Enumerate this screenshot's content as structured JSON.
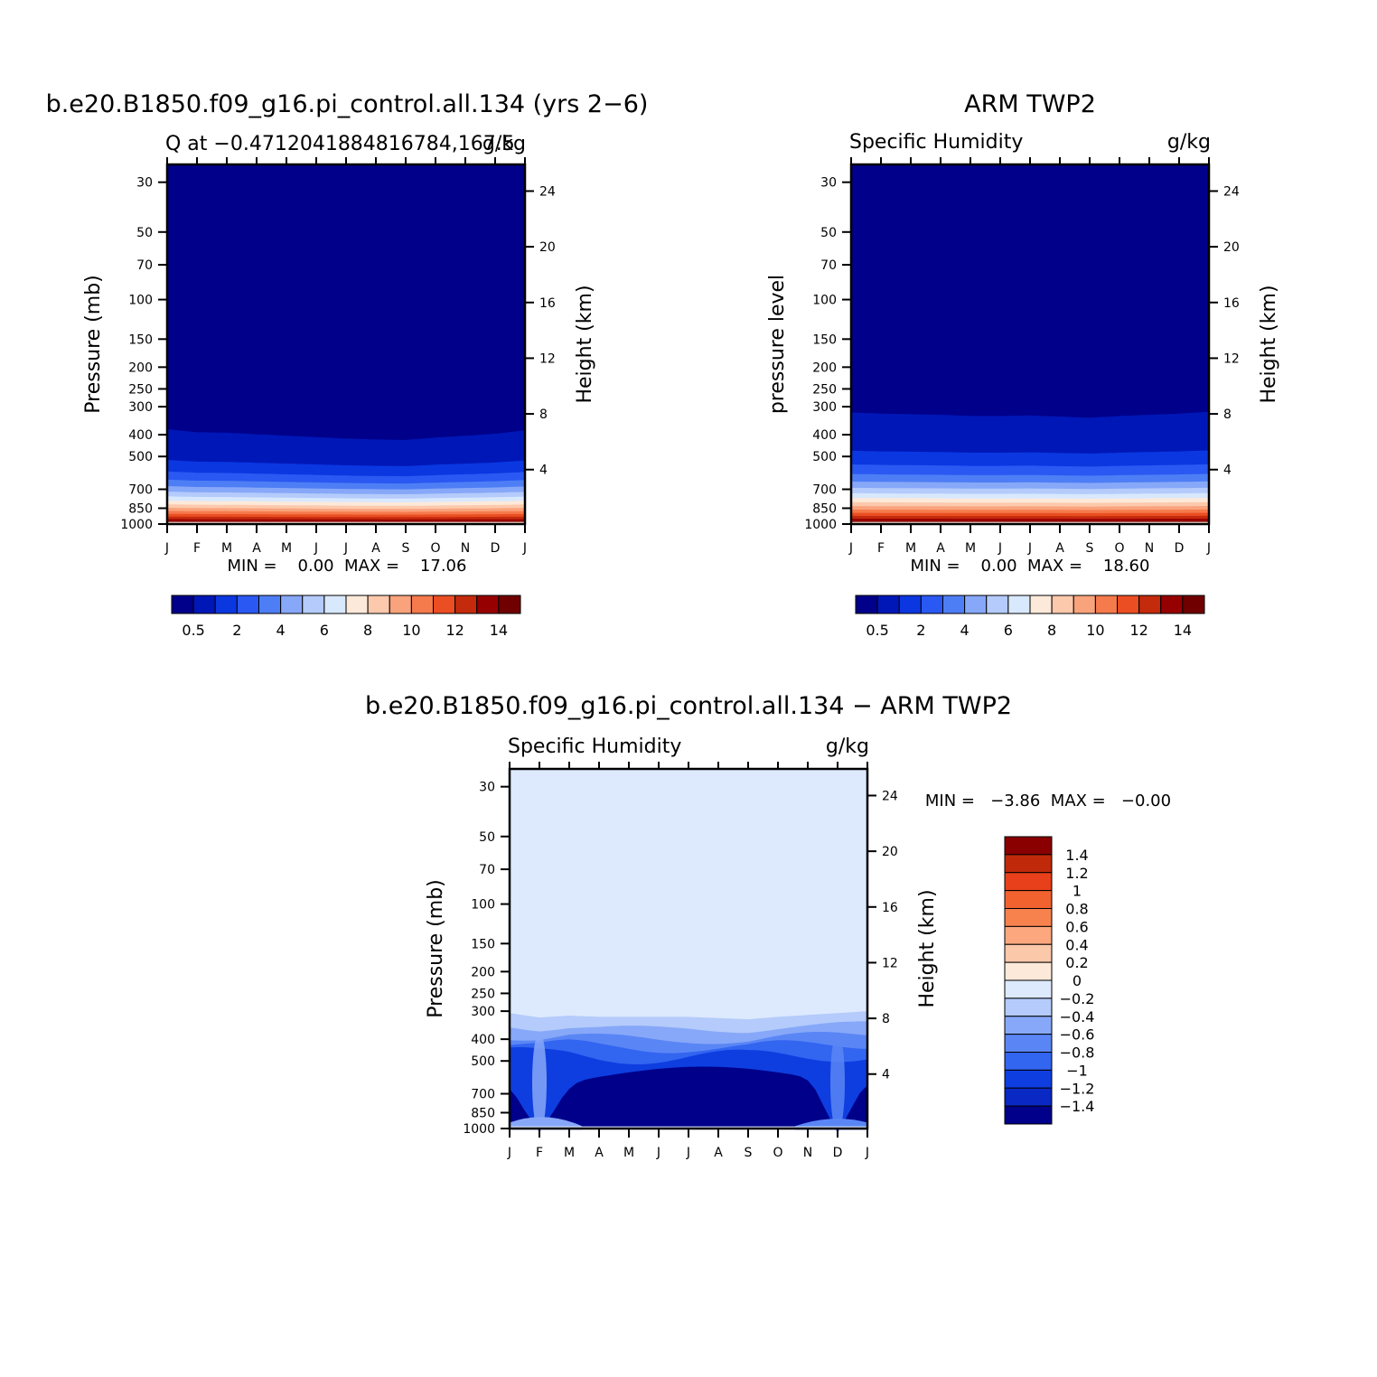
{
  "chart_data": [
    {
      "type": "heatmap",
      "title": "b.e20.B1850.f09_g16.pi_control.all.134 (yrs 2−6)",
      "subtitle_left": "Q at −0.47120418848167 84,167.5",
      "subtitle_left_full": "Q at −0.4712041884816784,167.5",
      "subtitle_right": "g/kg",
      "ylabel": "Pressure (mb)",
      "ylabel_right": "Height (km)",
      "x": [
        "J",
        "F",
        "M",
        "A",
        "M",
        "J",
        "J",
        "A",
        "S",
        "O",
        "N",
        "D",
        "J"
      ],
      "pressure_ticks": [
        30,
        50,
        70,
        100,
        150,
        200,
        250,
        300,
        400,
        500,
        700,
        850,
        1000
      ],
      "height_ticks": [
        4,
        8,
        12,
        16,
        20,
        24
      ],
      "ylim": [
        1000,
        25
      ],
      "stats": "MIN =    0.00  MAX =    17.06",
      "colorbar": {
        "labels": [
          "0.5",
          "2",
          "4",
          "6",
          "8",
          "10",
          "12",
          "14"
        ],
        "colors": [
          "#00008a",
          "#0017b8",
          "#0a37e0",
          "#2a58f2",
          "#4e7ef5",
          "#87a8f8",
          "#b4cbfb",
          "#d8e8fd",
          "#fde9d9",
          "#fcc9ac",
          "#f9a37c",
          "#f57a4c",
          "#ea4e22",
          "#c42a0c",
          "#960000",
          "#700000"
        ]
      },
      "moist_top_pressure_by_month": [
        378,
        390,
        392,
        398,
        404,
        410,
        416,
        420,
        422,
        412,
        404,
        396,
        382
      ]
    },
    {
      "type": "heatmap",
      "title": "ARM TWP2",
      "subtitle_left": "Specific Humidity",
      "subtitle_right": "g/kg",
      "ylabel": "pressure level",
      "ylabel_right": "Height (km)",
      "x": [
        "J",
        "F",
        "M",
        "A",
        "M",
        "J",
        "J",
        "A",
        "S",
        "O",
        "N",
        "D",
        "J"
      ],
      "pressure_ticks": [
        30,
        50,
        70,
        100,
        150,
        200,
        250,
        300,
        400,
        500,
        700,
        850,
        1000
      ],
      "height_ticks": [
        4,
        8,
        12,
        16,
        20,
        24
      ],
      "ylim": [
        1000,
        25
      ],
      "stats": "MIN =    0.00  MAX =    18.60",
      "colorbar": {
        "labels": [
          "0.5",
          "2",
          "4",
          "6",
          "8",
          "10",
          "12",
          "14"
        ],
        "colors": [
          "#00008a",
          "#0017b8",
          "#0a37e0",
          "#2a58f2",
          "#4e7ef5",
          "#87a8f8",
          "#b4cbfb",
          "#d8e8fd",
          "#fde9d9",
          "#fcc9ac",
          "#f9a37c",
          "#f57a4c",
          "#ea4e22",
          "#c42a0c",
          "#960000",
          "#700000"
        ]
      },
      "moist_top_pressure_by_month": [
        318,
        322,
        324,
        326,
        330,
        330,
        328,
        332,
        336,
        330,
        326,
        322,
        316
      ]
    },
    {
      "type": "heatmap",
      "title": "b.e20.B1850.f09_g16.pi_control.all.134 − ARM TWP2",
      "subtitle_left": "Specific Humidity",
      "subtitle_right": "g/kg",
      "ylabel": "Pressure (mb)",
      "ylabel_right": "Height (km)",
      "x": [
        "J",
        "F",
        "M",
        "A",
        "M",
        "J",
        "J",
        "A",
        "S",
        "O",
        "N",
        "D",
        "J"
      ],
      "pressure_ticks": [
        30,
        50,
        70,
        100,
        150,
        200,
        250,
        300,
        400,
        500,
        700,
        850,
        1000
      ],
      "height_ticks": [
        4,
        8,
        12,
        16,
        20,
        24
      ],
      "ylim": [
        1000,
        25
      ],
      "stats": "MIN =   −3.86  MAX =   −0.00",
      "colorbar": {
        "labels": [
          "1.4",
          "1.2",
          "1",
          "0.8",
          "0.6",
          "0.4",
          "0.2",
          "0",
          "−0.2",
          "−0.4",
          "−0.6",
          "−0.8",
          "−1",
          "−1.2",
          "−1.4"
        ],
        "colors": [
          "#8a0000",
          "#c02a0a",
          "#e8401a",
          "#f2622e",
          "#f8824e",
          "#fca77e",
          "#fcc8aa",
          "#fde9d9",
          "#dde9fd",
          "#b4cbfb",
          "#87a8f8",
          "#5a86f5",
          "#3265f0",
          "#0e3ee0",
          "#0a28c4",
          "#00008a"
        ]
      },
      "dry_top_pressure_by_month": [
        306,
        320,
        314,
        318,
        318,
        318,
        318,
        322,
        326,
        318,
        312,
        306,
        300
      ]
    }
  ]
}
